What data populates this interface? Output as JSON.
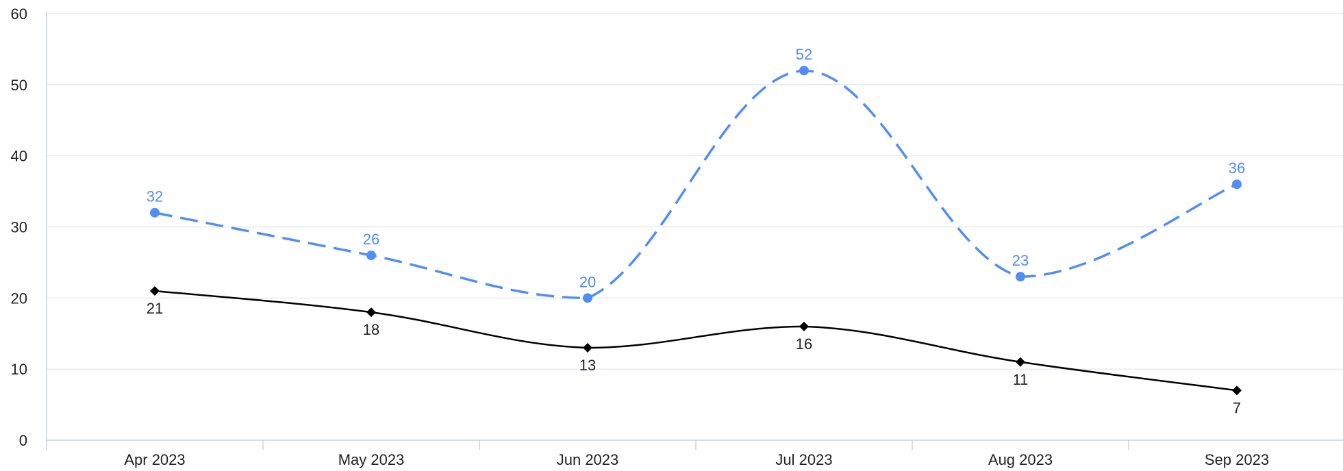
{
  "chart_data": {
    "type": "line",
    "categories": [
      "Apr 2023",
      "May 2023",
      "Jun 2023",
      "Jul 2023",
      "Aug 2023",
      "Sep 2023"
    ],
    "series": [
      {
        "values": [
          32,
          26,
          20,
          52,
          23,
          36
        ],
        "color": "#4f8ef7",
        "line_style": "dashed",
        "marker": "circle",
        "label_position": "above",
        "smooth": true
      },
      {
        "values": [
          21,
          18,
          13,
          16,
          11,
          7
        ],
        "color": "#000000",
        "line_style": "solid",
        "marker": "diamond",
        "label_position": "below",
        "smooth": true
      }
    ],
    "ylim": [
      0,
      60
    ],
    "yticks": [
      0,
      10,
      20,
      30,
      40,
      50,
      60
    ],
    "grid": true,
    "legend": "none",
    "title": "",
    "xlabel": "",
    "ylabel": ""
  }
}
